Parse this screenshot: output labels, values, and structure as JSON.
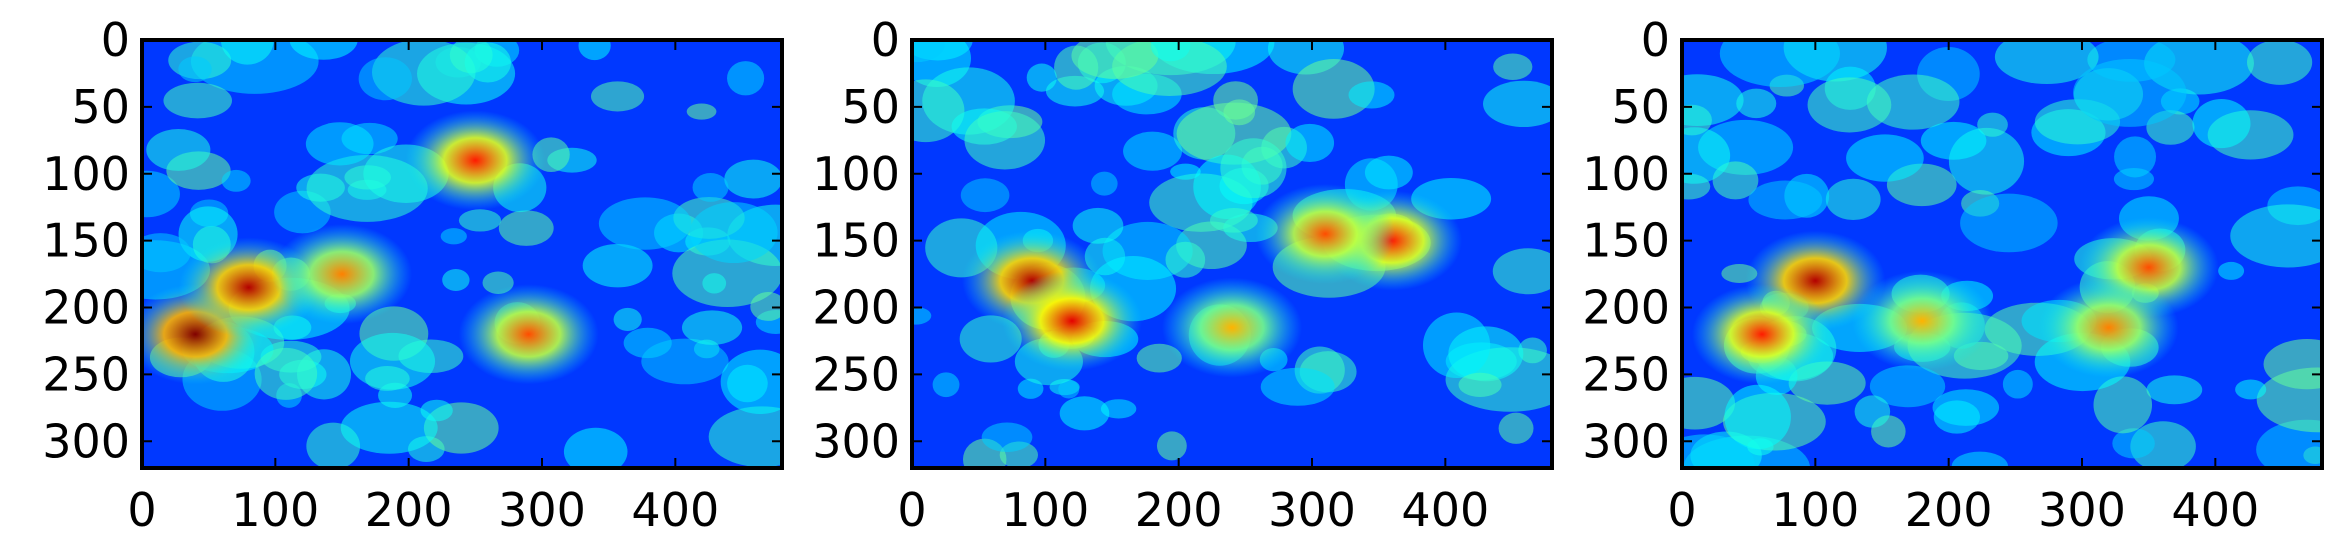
{
  "chart_data": [
    {
      "type": "heatmap",
      "colormap": "jet",
      "title": "",
      "xlabel": "",
      "ylabel": "",
      "xlim": [
        0,
        480
      ],
      "ylim": [
        320,
        0
      ],
      "xticks": [
        "0",
        "100",
        "200",
        "300",
        "400"
      ],
      "yticks": [
        "0",
        "50",
        "100",
        "150",
        "200",
        "250",
        "300"
      ],
      "hotspots": [
        {
          "x": 40,
          "y": 220,
          "value": 1.0
        },
        {
          "x": 80,
          "y": 185,
          "value": 0.95
        },
        {
          "x": 250,
          "y": 90,
          "value": 0.85
        },
        {
          "x": 290,
          "y": 220,
          "value": 0.8
        },
        {
          "x": 150,
          "y": 175,
          "value": 0.75
        }
      ]
    },
    {
      "type": "heatmap",
      "colormap": "jet",
      "title": "",
      "xlabel": "",
      "ylabel": "",
      "xlim": [
        0,
        480
      ],
      "ylim": [
        320,
        0
      ],
      "xticks": [
        "0",
        "100",
        "200",
        "300",
        "400"
      ],
      "yticks": [
        "0",
        "50",
        "100",
        "150",
        "200",
        "250",
        "300"
      ],
      "hotspots": [
        {
          "x": 90,
          "y": 180,
          "value": 0.95
        },
        {
          "x": 120,
          "y": 210,
          "value": 0.9
        },
        {
          "x": 360,
          "y": 150,
          "value": 0.85
        },
        {
          "x": 310,
          "y": 145,
          "value": 0.8
        },
        {
          "x": 240,
          "y": 215,
          "value": 0.7
        }
      ]
    },
    {
      "type": "heatmap",
      "colormap": "jet",
      "title": "",
      "xlabel": "",
      "ylabel": "",
      "xlim": [
        0,
        480
      ],
      "ylim": [
        320,
        0
      ],
      "xticks": [
        "0",
        "100",
        "200",
        "300",
        "400"
      ],
      "yticks": [
        "0",
        "50",
        "100",
        "150",
        "200",
        "250",
        "300"
      ],
      "hotspots": [
        {
          "x": 100,
          "y": 180,
          "value": 0.95
        },
        {
          "x": 60,
          "y": 220,
          "value": 0.85
        },
        {
          "x": 350,
          "y": 170,
          "value": 0.8
        },
        {
          "x": 320,
          "y": 215,
          "value": 0.75
        },
        {
          "x": 180,
          "y": 210,
          "value": 0.7
        }
      ]
    }
  ]
}
